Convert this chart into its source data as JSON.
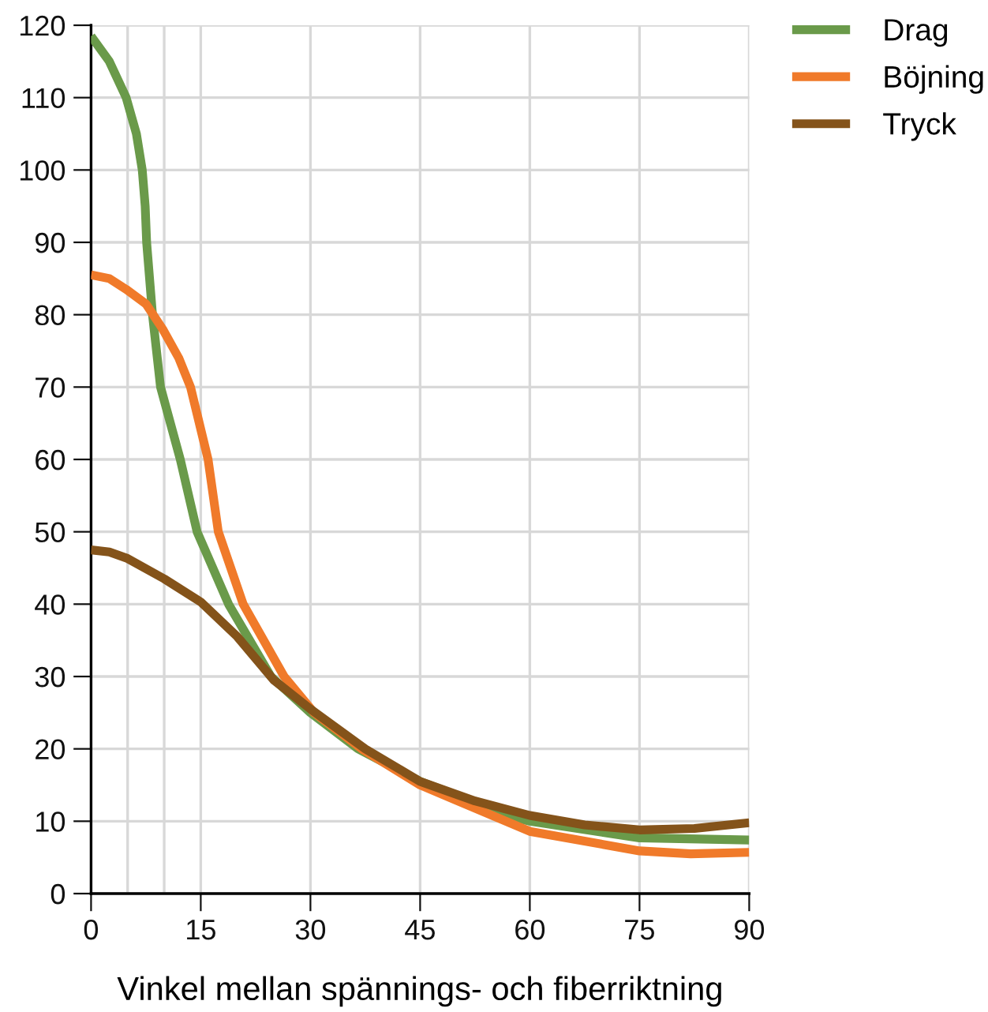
{
  "chart_data": {
    "type": "line",
    "xlabel": "Vinkel mellan spännings- och fiberriktning",
    "xlim": [
      0,
      90
    ],
    "ylim": [
      0,
      120
    ],
    "xticks": [
      0,
      {
        "value": 5,
        "label": null
      },
      {
        "value": 10,
        "label": null
      },
      15,
      30,
      45,
      60,
      75,
      90
    ],
    "yticks": [
      0,
      10,
      20,
      30,
      40,
      50,
      60,
      70,
      80,
      90,
      100,
      110,
      120
    ],
    "grid": true,
    "legend": "top right",
    "marker": "none",
    "line_style": "solid",
    "series": [
      {
        "name": "Drag",
        "color": "#6a9a4a",
        "x": [
          0,
          2.5,
          4.8,
          6.2,
          7.0,
          7.4,
          7.6,
          8.4,
          9.5,
          12.2,
          14.5,
          18.8,
          24.6,
          30,
          36.5,
          45,
          58,
          60,
          75,
          90
        ],
        "values": [
          118.5,
          115,
          110,
          105,
          100,
          95,
          90,
          80,
          70,
          60,
          50,
          40,
          30,
          25,
          20,
          15.5,
          10.5,
          10,
          7.7,
          7.4
        ]
      },
      {
        "name": "Böjning",
        "color": "#f07a2a",
        "x": [
          0,
          2.5,
          4.8,
          7.5,
          9.8,
          12,
          13.6,
          16,
          17.4,
          20.8,
          26.4,
          30.5,
          37,
          45,
          60,
          75,
          82,
          90
        ],
        "values": [
          85.5,
          85,
          83.5,
          81.5,
          78,
          74,
          70,
          60,
          50,
          40,
          30,
          25,
          20,
          15,
          8.6,
          5.9,
          5.5,
          5.7
        ]
      },
      {
        "name": "Tryck",
        "color": "#84531a",
        "x": [
          0,
          2.5,
          5,
          10,
          15,
          20,
          25,
          30,
          37.5,
          45,
          52.5,
          60,
          67.5,
          75,
          82.5,
          90
        ],
        "values": [
          47.5,
          47.2,
          46.3,
          43.5,
          40.3,
          35.5,
          29.5,
          25.5,
          20,
          15.5,
          12.8,
          10.8,
          9.5,
          8.8,
          9,
          9.8
        ]
      }
    ]
  }
}
